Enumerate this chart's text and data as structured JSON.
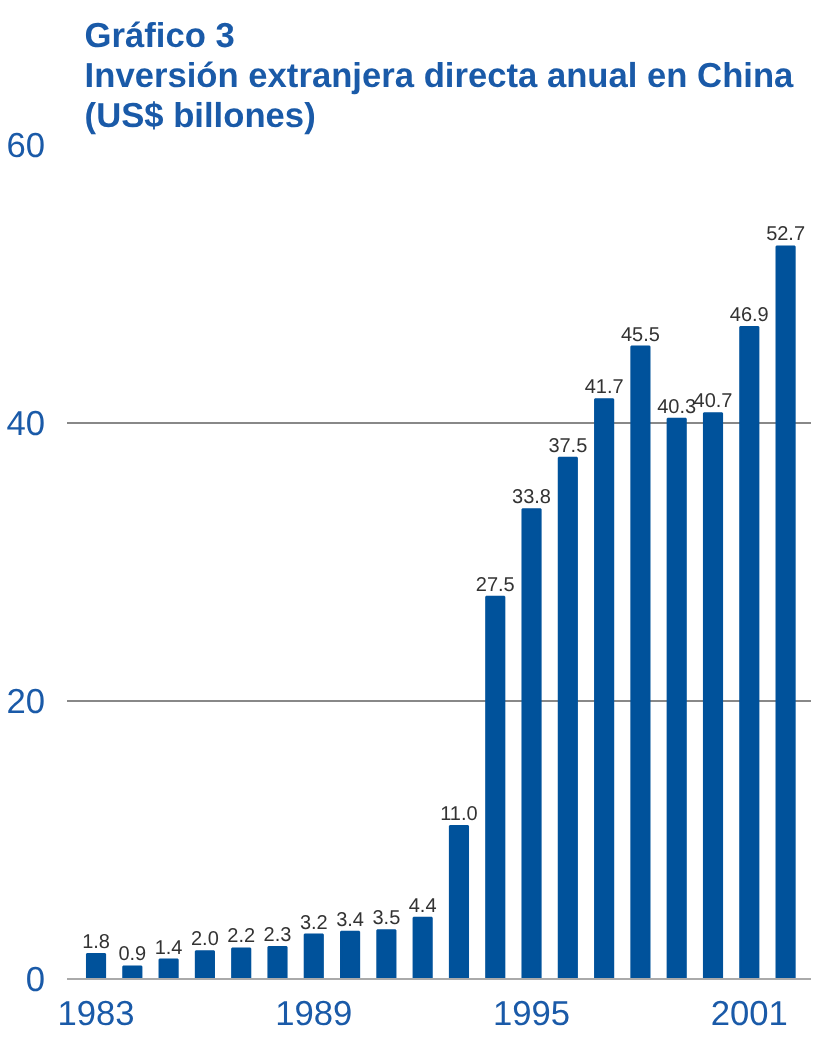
{
  "chart_data": {
    "type": "bar",
    "title": "Gráfico 3\nInversión extranjera directa anual en China\n(US$ billones)",
    "categories": [
      "1983",
      null,
      null,
      null,
      null,
      null,
      "1989",
      null,
      null,
      null,
      null,
      null,
      "1995",
      null,
      null,
      null,
      null,
      null,
      "2001",
      null
    ],
    "values": [
      1.8,
      0.9,
      1.4,
      2.0,
      2.2,
      2.3,
      3.2,
      3.4,
      3.5,
      4.4,
      11.0,
      27.5,
      33.8,
      37.5,
      41.7,
      45.5,
      40.3,
      40.7,
      46.9,
      52.7
    ],
    "value_labels": [
      "1.8",
      "0.9",
      "1.4",
      "2.0",
      "2.2",
      "2.3",
      "3.2",
      "3.4",
      "3.5",
      "4.4",
      "11.0",
      "27.5",
      "33.8",
      "37.5",
      "41.7",
      "45.5",
      "40.3",
      "40.7",
      "46.9",
      "52.7"
    ],
    "color": "#00529b",
    "ylim": [
      0,
      60
    ],
    "yticks": [
      0,
      20,
      40,
      60
    ],
    "grid": "y"
  }
}
